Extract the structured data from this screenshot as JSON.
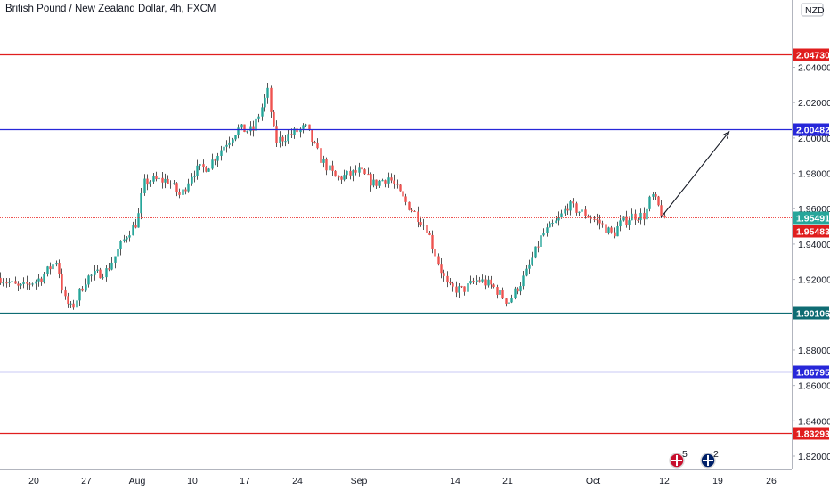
{
  "header": {
    "title": "British Pound / New Zealand Dollar, 4h, FXCM"
  },
  "colors": {
    "up": "#26a69a",
    "down": "#ef5350",
    "wick": "#555555",
    "red_line": "#e01e1e",
    "blue_line": "#2727d9",
    "teal_line": "#0f6c73",
    "price_line": "#ef5350"
  },
  "chart_data": {
    "type": "candlestick",
    "title": "British Pound / New Zealand Dollar, 4h, FXCM",
    "currency": "NZD",
    "x_tick_labels": [
      "20",
      "27",
      "Aug",
      "10",
      "17",
      "24",
      "Sep",
      "14",
      "21",
      "Oct",
      "12",
      "19",
      "26"
    ],
    "y_ticks": [
      1.82,
      1.84,
      1.86,
      1.88,
      1.9,
      1.92,
      1.94,
      1.96,
      1.98,
      2.0,
      2.02,
      2.04
    ],
    "y_tick_labels": [
      "1.82000",
      "1.84000",
      "1.86000",
      "1.88000",
      "1.90000",
      "1.92000",
      "1.94000",
      "1.96000",
      "1.98000",
      "2.00000",
      "2.02000",
      "2.04000"
    ],
    "ylim": [
      1.8076,
      2.0582
    ],
    "grid": false,
    "horizontal_levels": [
      {
        "value": 2.0473,
        "label": "2.04730",
        "color": "red"
      },
      {
        "value": 2.00482,
        "label": "2.00482",
        "color": "blue"
      },
      {
        "value": 1.90106,
        "label": "1.90106",
        "color": "teal"
      },
      {
        "value": 1.86795,
        "label": "1.86795",
        "color": "blue"
      },
      {
        "value": 1.83293,
        "label": "1.83293",
        "color": "red"
      }
    ],
    "current_price": {
      "value": 1.95491,
      "label": "1.95491"
    },
    "bid_price": {
      "value": 1.95483,
      "label": "1.95483"
    },
    "projection_arrow": {
      "from": {
        "date": "Oct 12",
        "value": 1.9549
      },
      "to": {
        "date": "Oct 20",
        "value": 2.0035
      }
    },
    "close_path": [
      [
        "Jul 15",
        1.922
      ],
      [
        "Jul 18",
        1.915
      ],
      [
        "Jul 21",
        1.921
      ],
      [
        "Jul 23",
        1.931
      ],
      [
        "Jul 24",
        1.909
      ],
      [
        "Jul 25",
        1.903
      ],
      [
        "Jul 27",
        1.921
      ],
      [
        "Jul 29",
        1.925
      ],
      [
        "Jul 31",
        1.946
      ],
      [
        "Aug 1",
        1.953
      ],
      [
        "Aug 2",
        1.974
      ],
      [
        "Aug 3",
        1.976
      ],
      [
        "Aug 6",
        1.976
      ],
      [
        "Aug 8",
        1.967
      ],
      [
        "Aug 10",
        1.981
      ],
      [
        "Aug 12",
        1.984
      ],
      [
        "Aug 14",
        1.995
      ],
      [
        "Aug 16",
        2.005
      ],
      [
        "Aug 18",
        2.004
      ],
      [
        "Aug 20",
        2.026
      ],
      [
        "Aug 21",
        1.998
      ],
      [
        "Aug 23",
        2.002
      ],
      [
        "Aug 25",
        2.006
      ],
      [
        "Aug 27",
        1.988
      ],
      [
        "Aug 29",
        1.977
      ],
      [
        "Sep 1",
        1.981
      ],
      [
        "Sep 3",
        1.974
      ],
      [
        "Sep 5",
        1.978
      ],
      [
        "Sep 7",
        1.965
      ],
      [
        "Sep 10",
        1.95
      ],
      [
        "Sep 12",
        1.926
      ],
      [
        "Sep 13",
        1.915
      ],
      [
        "Sep 15",
        1.914
      ],
      [
        "Sep 17",
        1.92
      ],
      [
        "Sep 19",
        1.916
      ],
      [
        "Sep 21",
        1.907
      ],
      [
        "Sep 23",
        1.922
      ],
      [
        "Sep 25",
        1.945
      ],
      [
        "Sep 27",
        1.954
      ],
      [
        "Sep 28",
        1.962
      ],
      [
        "Sep 30",
        1.957
      ],
      [
        "Oct 2",
        1.952
      ],
      [
        "Oct 4",
        1.945
      ],
      [
        "Oct 5",
        1.951
      ],
      [
        "Oct 7",
        1.956
      ],
      [
        "Oct 9",
        1.956
      ],
      [
        "Oct 10",
        1.968
      ],
      [
        "Oct 12",
        1.9549
      ]
    ]
  },
  "badges": [
    {
      "icon": "flag-gb-icon",
      "count": "5"
    },
    {
      "icon": "flag-nz-icon",
      "count": "2"
    }
  ]
}
